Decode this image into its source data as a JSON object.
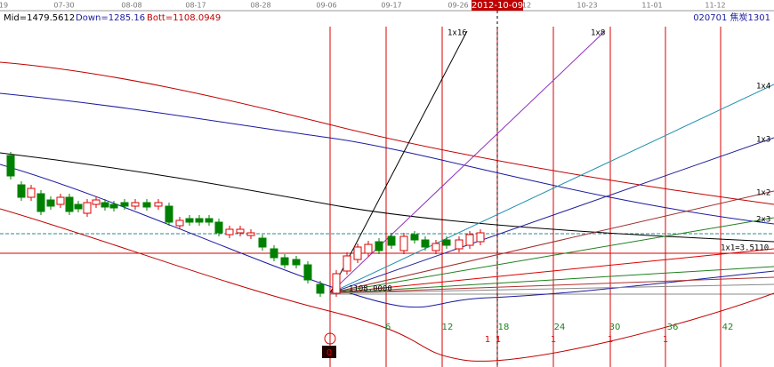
{
  "header": {
    "mid": "Mid=1479.5612",
    "down": "Down=1285.16",
    "bott": "Bott=1108.0949",
    "symbol": "020701 焦炭1301"
  },
  "date_axis": [
    "19",
    "07-30",
    "08-08",
    "08-17",
    "08-28",
    "09-06",
    "09-17",
    "09-26",
    "12",
    "10-23",
    "11-01",
    "11-12"
  ],
  "cursor_date": "2012-10-09",
  "fan_labels": [
    "1x16",
    "1x8",
    "1x4",
    "1x3",
    "1x2",
    "2x3",
    "1x1=3.5110"
  ],
  "price_label": "1108.0000",
  "bar_counts": [
    "6",
    "12",
    "18",
    "24",
    "30",
    "36",
    "42"
  ],
  "cycle_marks": [
    "1",
    "1",
    "1",
    "1",
    "1"
  ],
  "origin_mark": "0"
}
